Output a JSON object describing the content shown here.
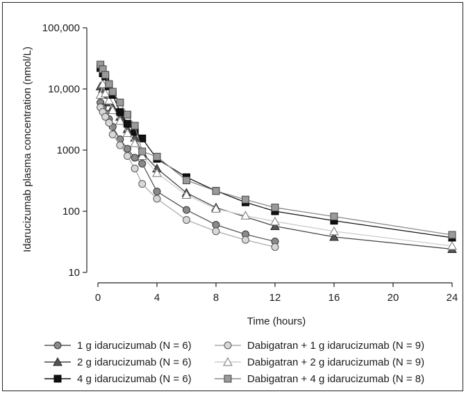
{
  "chart_data": {
    "type": "line",
    "xlabel": "Time (hours)",
    "ylabel": "Idarucizumab plasma concentration (nmol/L)",
    "xlim": [
      0,
      24
    ],
    "ylim": [
      10,
      100000
    ],
    "yscale": "log",
    "xticks": [
      0,
      4,
      8,
      12,
      16,
      20,
      24
    ],
    "yticks": [
      10,
      100,
      1000,
      10000,
      100000
    ],
    "ytick_labels": [
      "10",
      "100",
      "1000",
      "10,000",
      "100,000"
    ],
    "grid": false,
    "legend_position": "bottom",
    "series": [
      {
        "name": "1 g idarucizumab (N = 6)",
        "marker": "circle",
        "fill": "#8a8a8a",
        "line": "#555555",
        "x": [
          0.17,
          0.33,
          0.5,
          0.75,
          1.0,
          1.5,
          2.0,
          2.5,
          3.0,
          4.0,
          6.0,
          8.0,
          10.0,
          12.0
        ],
        "y": [
          6000,
          5000,
          4000,
          3200,
          2400,
          1500,
          1050,
          750,
          600,
          210,
          105,
          60,
          42,
          32
        ]
      },
      {
        "name": "Dabigatran + 1 g idarucizumab (N = 9)",
        "marker": "circle",
        "fill": "#d8d8d8",
        "line": "#aaaaaa",
        "x": [
          0.17,
          0.33,
          0.5,
          0.75,
          1.0,
          1.5,
          2.0,
          2.5,
          3.0,
          4.0,
          6.0,
          8.0,
          10.0,
          12.0
        ],
        "y": [
          5000,
          4200,
          3500,
          2800,
          1800,
          1200,
          800,
          500,
          280,
          160,
          72,
          47,
          34,
          26
        ]
      },
      {
        "name": "2 g idarucizumab (N = 6)",
        "marker": "triangle",
        "fill": "#555555",
        "line": "#444444",
        "x": [
          0.17,
          0.33,
          0.5,
          0.75,
          1.0,
          1.5,
          2.0,
          2.5,
          3.0,
          4.0,
          6.0,
          8.0,
          12.0,
          16.0,
          24.0
        ],
        "y": [
          11000,
          10000,
          8000,
          6000,
          5000,
          3500,
          2200,
          1600,
          900,
          500,
          200,
          115,
          57,
          38,
          24
        ]
      },
      {
        "name": "Dabigatran + 2 g idarucizumab (N = 9)",
        "marker": "triangle",
        "fill": "#ffffff",
        "line": "#cccccc",
        "x": [
          0.17,
          0.33,
          0.5,
          0.75,
          1.0,
          1.5,
          2.0,
          2.5,
          3.0,
          4.0,
          6.0,
          8.0,
          10.0,
          12.0,
          16.0,
          24.0
        ],
        "y": [
          8000,
          12000,
          8500,
          6500,
          4500,
          3000,
          1900,
          1300,
          800,
          420,
          185,
          110,
          85,
          68,
          47,
          27
        ]
      },
      {
        "name": "4 g idarucizumab (N = 6)",
        "marker": "square",
        "fill": "#111111",
        "line": "#111111",
        "x": [
          0.17,
          0.33,
          0.5,
          0.75,
          1.0,
          1.5,
          2.0,
          2.5,
          3.0,
          4.0,
          6.0,
          8.0,
          10.0,
          12.0,
          16.0,
          24.0
        ],
        "y": [
          22000,
          18000,
          16000,
          11000,
          8000,
          4200,
          2700,
          2000,
          1550,
          720,
          360,
          215,
          140,
          100,
          70,
          37
        ]
      },
      {
        "name": "Dabigatran + 4 g idarucizumab (N = 8)",
        "marker": "square",
        "fill": "#9a9a9a",
        "line": "#8a8a8a",
        "x": [
          0.17,
          0.33,
          0.5,
          0.75,
          1.0,
          1.5,
          2.0,
          2.5,
          3.0,
          4.0,
          6.0,
          8.0,
          10.0,
          12.0,
          16.0,
          24.0
        ],
        "y": [
          25000,
          21000,
          17000,
          12000,
          9000,
          6000,
          3800,
          2500,
          950,
          780,
          320,
          215,
          155,
          115,
          82,
          41
        ]
      }
    ],
    "legend_order": [
      0,
      1,
      2,
      3,
      4,
      5
    ]
  }
}
